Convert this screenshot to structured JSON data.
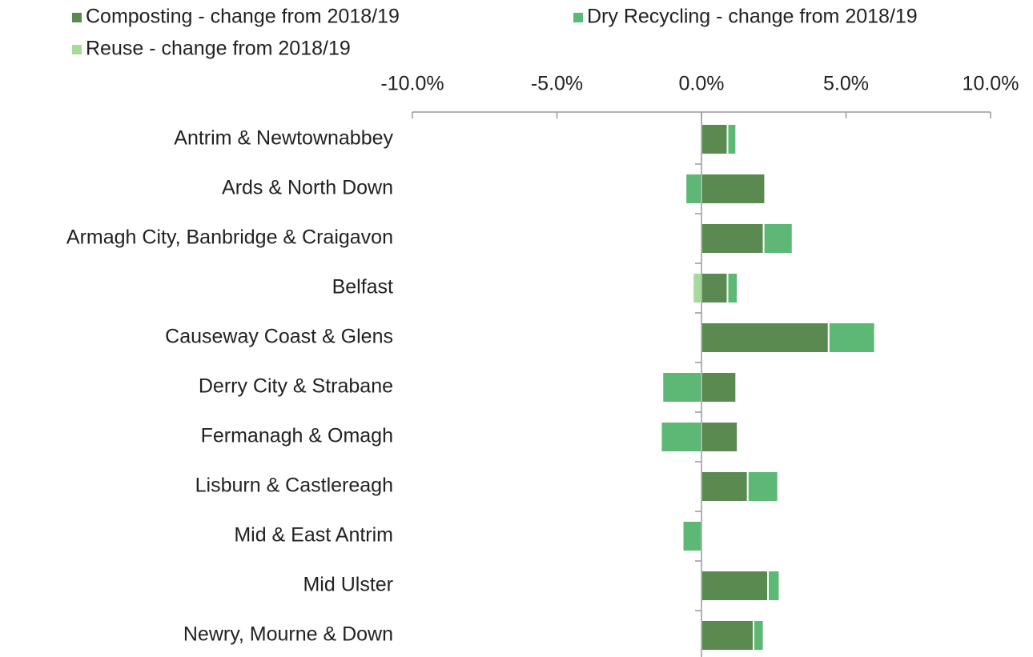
{
  "chart_data": {
    "type": "bar",
    "orientation": "horizontal",
    "stacked": true,
    "legend": "top",
    "categories": [
      "Antrim & Newtownabbey",
      "Ards & North Down",
      "Armagh City, Banbridge & Craigavon",
      "Belfast",
      "Causeway Coast & Glens",
      "Derry City & Strabane",
      "Fermanagh & Omagh",
      "Lisburn & Castlereagh",
      "Mid & East Antrim",
      "Mid Ulster",
      "Newry, Mourne & Down"
    ],
    "series": [
      {
        "name": "Composting - change from 2018/19",
        "color": "#5a8a50",
        "values": [
          0.9,
          2.2,
          2.15,
          0.9,
          4.4,
          1.2,
          1.25,
          1.6,
          0,
          2.3,
          1.8
        ]
      },
      {
        "name": "Dry Recycling - change from 2018/19",
        "color": "#5cb874",
        "values": [
          0.3,
          -0.55,
          1.0,
          0.35,
          1.6,
          -1.35,
          -1.4,
          1.05,
          -0.65,
          0.4,
          0.35
        ]
      },
      {
        "name": "Reuse - change from 2018/19",
        "color": "#a6dc9a",
        "values": [
          0,
          0,
          0,
          -0.3,
          0,
          0,
          0,
          0,
          0,
          0,
          0
        ]
      }
    ],
    "xlim": [
      -10,
      10
    ],
    "xticks": [
      {
        "value": -10,
        "label": "-10.0%"
      },
      {
        "value": -5,
        "label": "-5.0%"
      },
      {
        "value": 0,
        "label": "0.0%"
      },
      {
        "value": 5,
        "label": "5.0%"
      },
      {
        "value": 10,
        "label": "10.0%"
      }
    ]
  }
}
